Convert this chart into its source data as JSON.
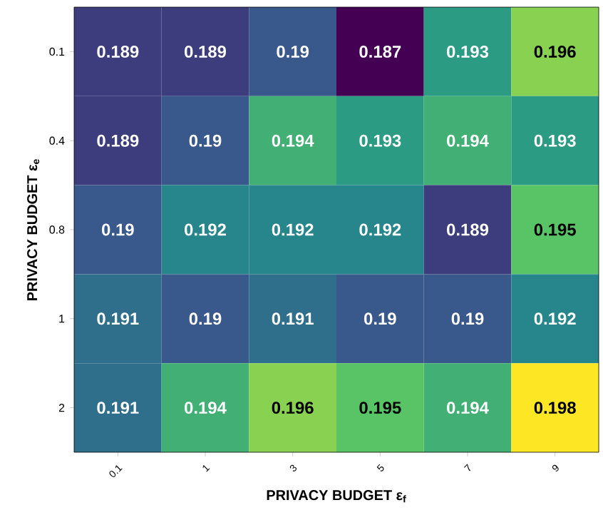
{
  "chart_data": {
    "type": "heatmap",
    "xlabel": "PRIVACY BUDGET ε$_{f}$",
    "ylabel": "PRIVACY BUDGET ε$_{e}$",
    "categories": [
      "0.1",
      "1",
      "3",
      "5",
      "7",
      "9"
    ],
    "y_categories": [
      "0.1",
      "0.4",
      "0.8",
      "1",
      "2"
    ],
    "cells": [
      [
        0.189,
        0.189,
        0.19,
        0.187,
        0.193,
        0.196
      ],
      [
        0.189,
        0.19,
        0.194,
        0.193,
        0.194,
        0.193
      ],
      [
        0.19,
        0.192,
        0.192,
        0.192,
        0.189,
        0.195
      ],
      [
        0.191,
        0.19,
        0.191,
        0.19,
        0.19,
        0.192
      ],
      [
        0.191,
        0.194,
        0.196,
        0.195,
        0.194,
        0.198
      ]
    ],
    "data_labels": true
  }
}
